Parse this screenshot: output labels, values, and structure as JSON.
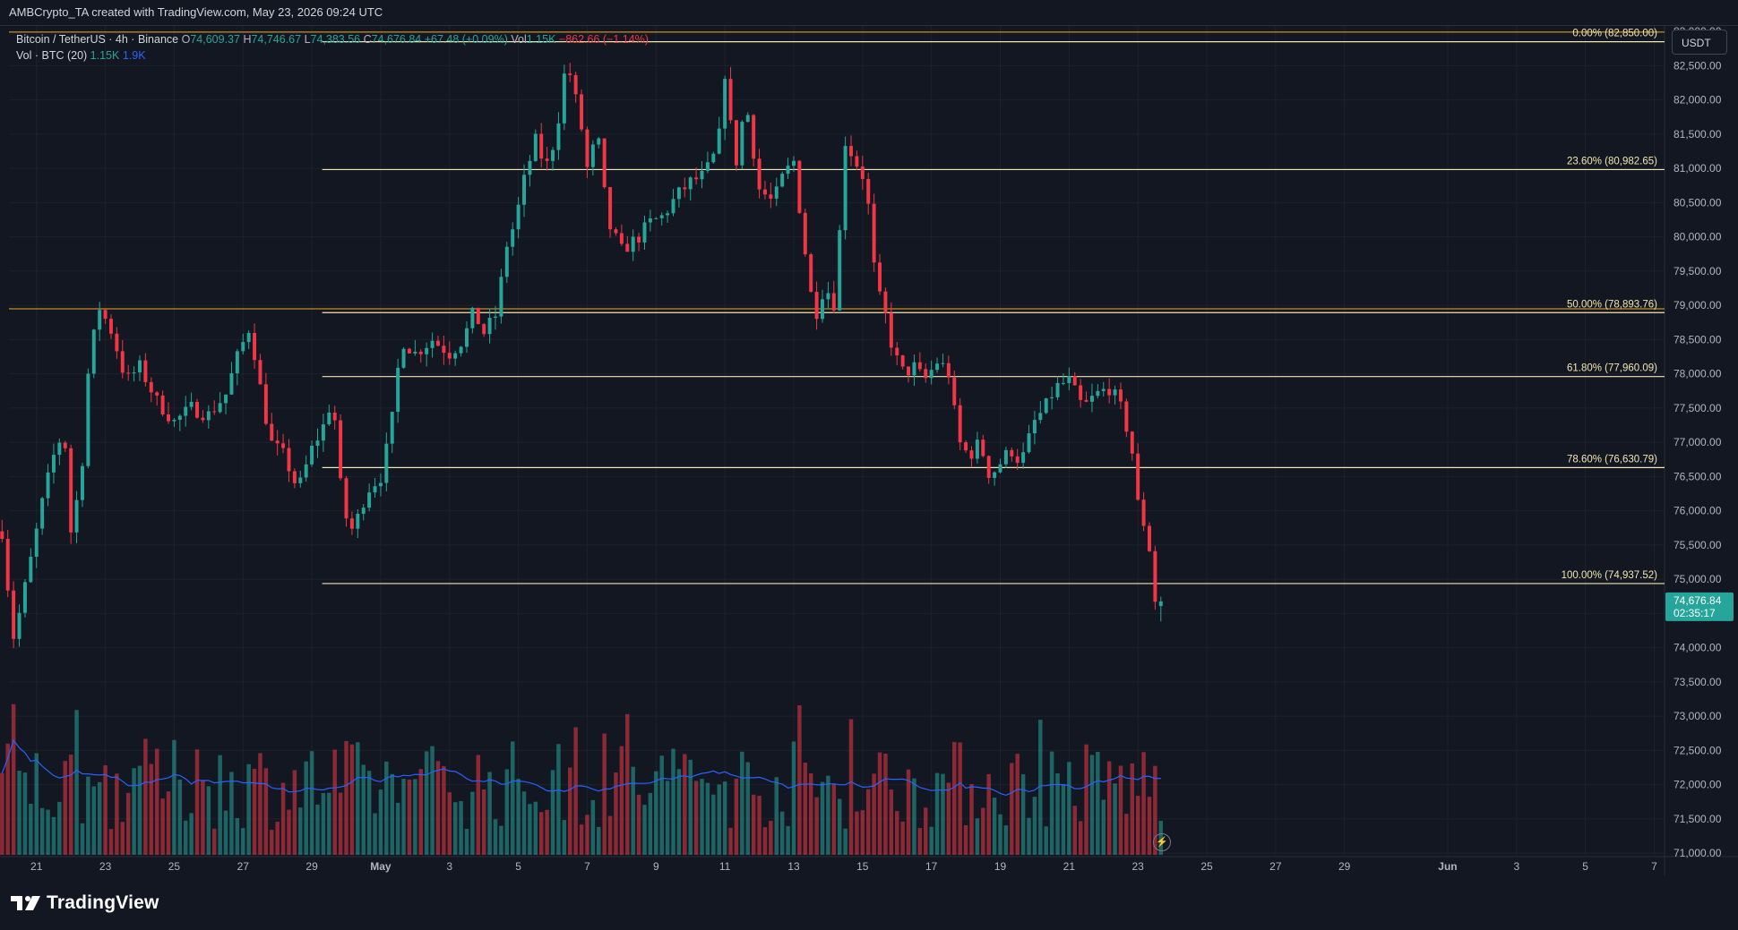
{
  "header": {
    "caption": "AMBCrypto_TA created with TradingView.com, May 23, 2026 09:24 UTC"
  },
  "legend": {
    "symbol": "Bitcoin / TetherUS · 4h · Binance",
    "open_label": "O",
    "open": "74,609.37",
    "high_label": "H",
    "high": "74,746.67",
    "low_label": "L",
    "low": "74,383.56",
    "close_label": "C",
    "close": "74,676.84",
    "change": "+67.48 (+0.09%)",
    "vol_label": "Vol",
    "vol": "1.15K",
    "vol_change": "−862.66 (−1.14%)",
    "indicator": "Vol · BTC (20)",
    "ind_v1": "1.15K",
    "ind_v2": "1.9K"
  },
  "toolbar": {
    "currency_button": "USDT"
  },
  "footer": {
    "brand": "TradingView"
  },
  "colors": {
    "up": "#26a69a",
    "down": "#f23645",
    "fib": "#f0e6b0",
    "hline": "#f5a623",
    "ma": "#2962ff",
    "background": "#131722",
    "grid": "#1e222d"
  },
  "icons": {
    "replay": "lightning-icon",
    "brand": "tradingview-logo-icon"
  },
  "chart_data": {
    "type": "candlestick",
    "interval": "4h",
    "y_axis_ticks": [
      "83,000.00",
      "82,500.00",
      "82,000.00",
      "81,500.00",
      "81,000.00",
      "80,500.00",
      "80,000.00",
      "79,500.00",
      "79,000.00",
      "78,500.00",
      "78,000.00",
      "77,500.00",
      "77,000.00",
      "76,500.00",
      "76,000.00",
      "75,500.00",
      "75,000.00",
      "74,500.00",
      "74,000.00",
      "73,500.00",
      "73,000.00",
      "72,500.00",
      "72,000.00",
      "71,500.00",
      "71,000.00"
    ],
    "ylim": [
      70950,
      83080
    ],
    "x_axis_ticks": [
      {
        "label": "21",
        "day": -10
      },
      {
        "label": "23",
        "day": -8
      },
      {
        "label": "25",
        "day": -6
      },
      {
        "label": "27",
        "day": -4
      },
      {
        "label": "29",
        "day": -2
      },
      {
        "label": "May",
        "day": 0
      },
      {
        "label": "3",
        "day": 2
      },
      {
        "label": "5",
        "day": 4
      },
      {
        "label": "7",
        "day": 6
      },
      {
        "label": "9",
        "day": 8
      },
      {
        "label": "11",
        "day": 10
      },
      {
        "label": "13",
        "day": 12
      },
      {
        "label": "15",
        "day": 14
      },
      {
        "label": "17",
        "day": 16
      },
      {
        "label": "19",
        "day": 18
      },
      {
        "label": "21",
        "day": 20
      },
      {
        "label": "23",
        "day": 22
      },
      {
        "label": "25",
        "day": 24
      },
      {
        "label": "27",
        "day": 26
      },
      {
        "label": "29",
        "day": 28
      },
      {
        "label": "Jun",
        "day": 31
      },
      {
        "label": "3",
        "day": 33
      },
      {
        "label": "5",
        "day": 35
      },
      {
        "label": "7",
        "day": 37
      }
    ],
    "xlim": [
      -10.8,
      37.3
    ],
    "fib_levels": [
      {
        "label": "0.00% (82,850.00)",
        "price": 82850
      },
      {
        "label": "23.60% (80,982.65)",
        "price": 80982.65
      },
      {
        "label": "50.00% (78,893.76)",
        "price": 78893.76
      },
      {
        "label": "61.80% (77,960.09)",
        "price": 77960.09
      },
      {
        "label": "78.60% (76,630.79)",
        "price": 76630.79
      },
      {
        "label": "100.00% (74,937.52)",
        "price": 74937.52
      }
    ],
    "fib_start_day": -1.7,
    "horizontal_lines": [
      82990,
      78950
    ],
    "last_price": {
      "price": 74676.84,
      "label": "74,676.84",
      "countdown": "02:35:17"
    },
    "price_anchors": [
      [
        -11,
        75700
      ],
      [
        -10.9,
        75300
      ],
      [
        -10.7,
        74100
      ],
      [
        -10.5,
        74500
      ],
      [
        -10.2,
        75200
      ],
      [
        -9.8,
        76200
      ],
      [
        -9.5,
        76800
      ],
      [
        -9.2,
        77200
      ],
      [
        -9,
        75700
      ],
      [
        -8.7,
        76500
      ],
      [
        -8.5,
        78000
      ],
      [
        -8.2,
        79000
      ],
      [
        -7.8,
        78600
      ],
      [
        -7.4,
        77900
      ],
      [
        -7,
        78100
      ],
      [
        -6.5,
        77600
      ],
      [
        -6,
        77300
      ],
      [
        -5.5,
        77500
      ],
      [
        -5,
        77400
      ],
      [
        -4.5,
        77700
      ],
      [
        -4.2,
        78200
      ],
      [
        -3.8,
        78700
      ],
      [
        -3.5,
        77800
      ],
      [
        -3.2,
        77000
      ],
      [
        -2.8,
        76800
      ],
      [
        -2.4,
        76300
      ],
      [
        -2,
        76900
      ],
      [
        -1.6,
        77300
      ],
      [
        -1.4,
        77700
      ],
      [
        -1.1,
        76000
      ],
      [
        -0.8,
        75700
      ],
      [
        -0.4,
        76300
      ],
      [
        0,
        76500
      ],
      [
        0.3,
        77200
      ],
      [
        0.6,
        78500
      ],
      [
        1,
        78300
      ],
      [
        1.5,
        78500
      ],
      [
        2,
        78300
      ],
      [
        2.4,
        78500
      ],
      [
        2.7,
        78900
      ],
      [
        3,
        78600
      ],
      [
        3.4,
        78900
      ],
      [
        3.6,
        79800
      ],
      [
        3.9,
        80200
      ],
      [
        4.2,
        80900
      ],
      [
        4.5,
        81400
      ],
      [
        4.8,
        81000
      ],
      [
        5.1,
        81500
      ],
      [
        5.4,
        82600
      ],
      [
        5.8,
        81700
      ],
      [
        6,
        81000
      ],
      [
        6.3,
        81500
      ],
      [
        6.6,
        80200
      ],
      [
        7,
        79800
      ],
      [
        7.5,
        80000
      ],
      [
        7.8,
        80200
      ],
      [
        8.2,
        80300
      ],
      [
        8.6,
        80600
      ],
      [
        9,
        80800
      ],
      [
        9.4,
        80900
      ],
      [
        9.8,
        81300
      ],
      [
        10,
        82400
      ],
      [
        10.3,
        81000
      ],
      [
        10.6,
        82000
      ],
      [
        11,
        80700
      ],
      [
        11.4,
        80500
      ],
      [
        11.7,
        80900
      ],
      [
        12,
        81100
      ],
      [
        12.3,
        79900
      ],
      [
        12.6,
        78800
      ],
      [
        12.9,
        79300
      ],
      [
        13.2,
        79000
      ],
      [
        13.5,
        81400
      ],
      [
        13.8,
        81100
      ],
      [
        14.1,
        80800
      ],
      [
        14.4,
        79200
      ],
      [
        14.6,
        79000
      ],
      [
        14.9,
        78300
      ],
      [
        15.2,
        78000
      ],
      [
        15.5,
        78100
      ],
      [
        15.8,
        77900
      ],
      [
        16.2,
        78200
      ],
      [
        16.5,
        78000
      ],
      [
        16.8,
        77000
      ],
      [
        17.1,
        76800
      ],
      [
        17.4,
        77000
      ],
      [
        17.7,
        76500
      ],
      [
        18,
        76700
      ],
      [
        18.3,
        76900
      ],
      [
        18.6,
        76700
      ],
      [
        19,
        77300
      ],
      [
        19.3,
        77500
      ],
      [
        19.6,
        77800
      ],
      [
        20,
        77900
      ],
      [
        20.4,
        77500
      ],
      [
        20.8,
        77700
      ],
      [
        21.2,
        77800
      ],
      [
        21.5,
        77500
      ],
      [
        21.8,
        77000
      ],
      [
        22,
        76100
      ],
      [
        22.3,
        75600
      ],
      [
        22.5,
        74700
      ],
      [
        22.7,
        74680
      ]
    ],
    "ohlc_footer": {
      "open": 74609.37,
      "high": 74746.67,
      "low": 74383.56,
      "close": 74676.84
    }
  }
}
